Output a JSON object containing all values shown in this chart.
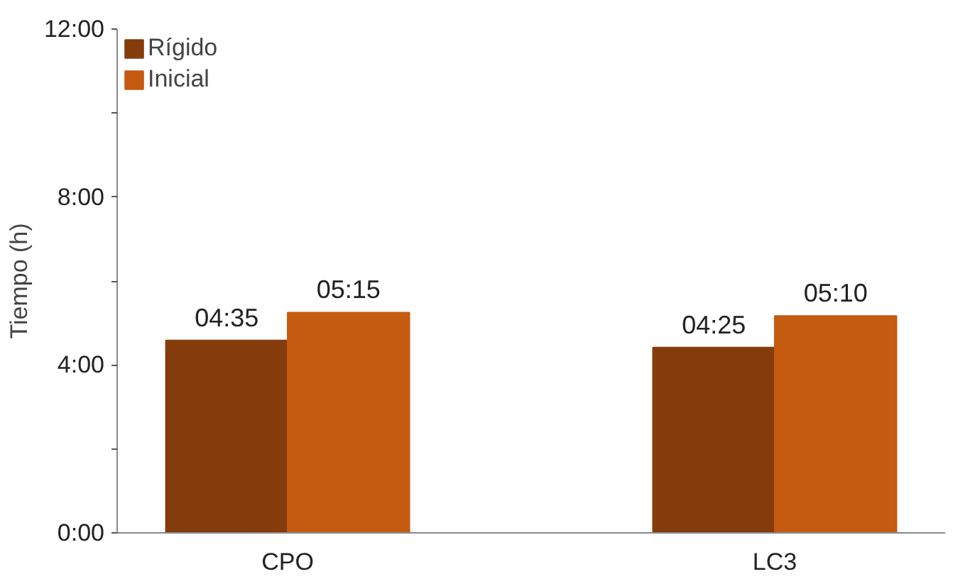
{
  "chart_data": {
    "type": "bar",
    "ylabel": "Tiempo (h)",
    "categories": [
      "CPO",
      "LC3"
    ],
    "series": [
      {
        "name": "Rígido",
        "color": "#843c0c",
        "values": [
          4.5833,
          4.4167
        ],
        "value_labels": [
          "04:35",
          "04:25"
        ]
      },
      {
        "name": "Inicial",
        "color": "#c55a11",
        "values": [
          5.25,
          5.1667
        ],
        "value_labels": [
          "05:15",
          "05:10"
        ]
      }
    ],
    "ylim": [
      0,
      12
    ],
    "yticks": [
      {
        "value": 0,
        "label": "0:00"
      },
      {
        "value": 2,
        "label": null
      },
      {
        "value": 4,
        "label": "4:00"
      },
      {
        "value": 6,
        "label": null
      },
      {
        "value": 8,
        "label": "8:00"
      },
      {
        "value": 10,
        "label": null
      },
      {
        "value": 12,
        "label": "12:00"
      }
    ],
    "grid": false,
    "legend": "top left"
  }
}
